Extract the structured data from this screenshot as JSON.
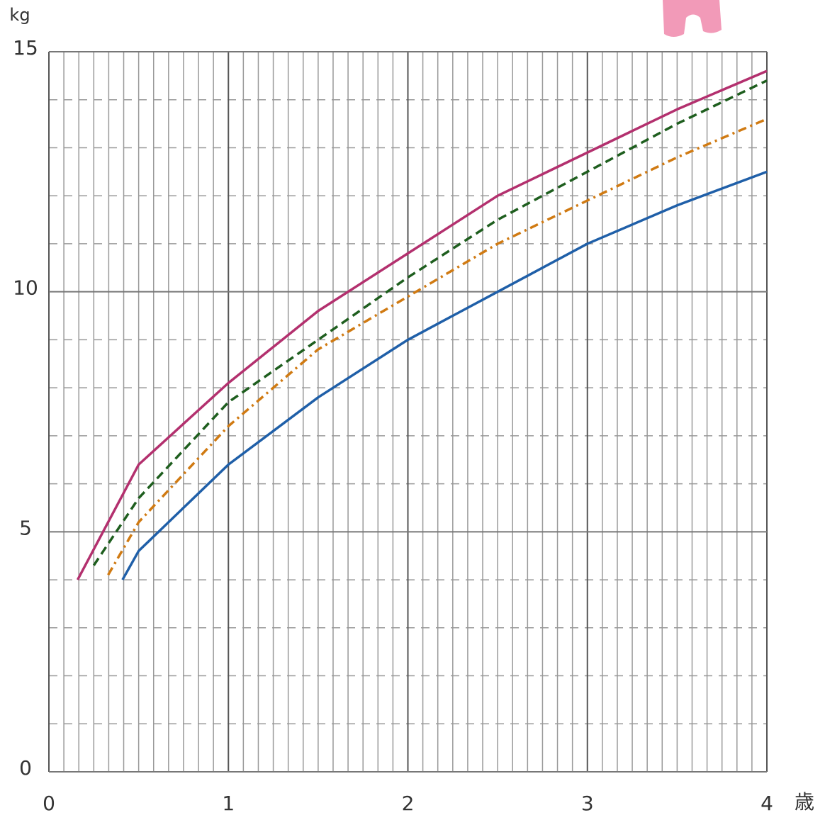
{
  "chart_data": {
    "type": "line",
    "xlabel": "歳",
    "ylabel": "kg",
    "xlim": [
      0,
      4
    ],
    "ylim": [
      0,
      15
    ],
    "xticks": [
      0,
      1,
      2,
      3,
      4
    ],
    "yticks": [
      0,
      5,
      10,
      15
    ],
    "grid": {
      "x_minor_per_tick": 12,
      "y_minor_per_tick": 5
    },
    "series": [
      {
        "color": "#b3306e",
        "style": "solid",
        "x": [
          0.16,
          0.5,
          1,
          1.5,
          2,
          2.5,
          3,
          3.5,
          4
        ],
        "values": [
          4.0,
          6.4,
          8.1,
          9.6,
          10.8,
          12.0,
          12.9,
          13.8,
          14.6
        ]
      },
      {
        "color": "#1e5e1e",
        "style": "dashed",
        "x": [
          0.25,
          0.5,
          1,
          1.5,
          2,
          2.5,
          3,
          3.5,
          4
        ],
        "values": [
          4.3,
          5.7,
          7.7,
          9.0,
          10.3,
          11.5,
          12.5,
          13.5,
          14.4
        ]
      },
      {
        "color": "#d07a12",
        "style": "dashdot",
        "x": [
          0.33,
          0.5,
          1,
          1.5,
          2,
          2.5,
          3,
          3.5,
          4
        ],
        "values": [
          4.1,
          5.2,
          7.2,
          8.8,
          9.9,
          11.0,
          11.9,
          12.8,
          13.6
        ]
      },
      {
        "color": "#1f5fa8",
        "style": "solid",
        "x": [
          0.41,
          0.5,
          1,
          1.5,
          2,
          2.5,
          3,
          3.5,
          4
        ],
        "values": [
          4.0,
          4.6,
          6.4,
          7.8,
          9.0,
          10.0,
          11.0,
          11.8,
          12.5
        ]
      }
    ]
  }
}
